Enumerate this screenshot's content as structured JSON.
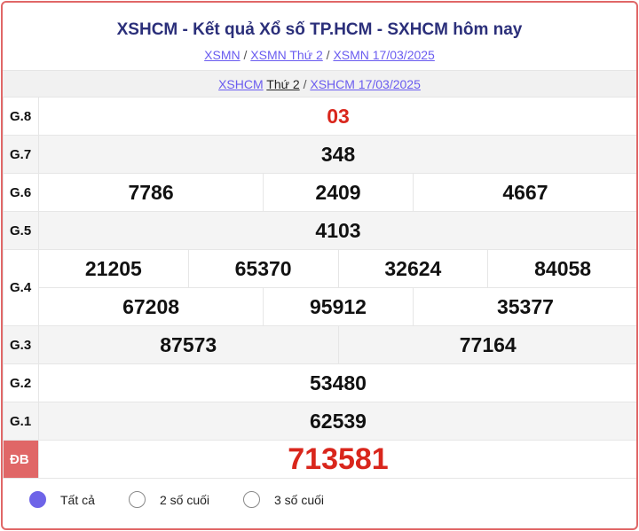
{
  "title": "XSHCM - Kết quả Xổ số TP.HCM - SXHCM hôm nay",
  "breadcrumb": [
    "XSMN",
    "XSMN Thứ 2",
    "XSMN 17/03/2025"
  ],
  "sub_breadcrumb": {
    "link1": "XSHCM",
    "link1_rest": "Thứ 2",
    "link2": "XSHCM 17/03/2025"
  },
  "prizes": {
    "g8": {
      "label": "G.8",
      "values": [
        "03"
      ]
    },
    "g7": {
      "label": "G.7",
      "values": [
        "348"
      ]
    },
    "g6": {
      "label": "G.6",
      "values": [
        "7786",
        "2409",
        "4667"
      ]
    },
    "g5": {
      "label": "G.5",
      "values": [
        "4103"
      ]
    },
    "g4": {
      "label": "G.4",
      "values": [
        "21205",
        "65370",
        "32624",
        "84058",
        "67208",
        "95912",
        "35377"
      ]
    },
    "g3": {
      "label": "G.3",
      "values": [
        "87573",
        "77164"
      ]
    },
    "g2": {
      "label": "G.2",
      "values": [
        "53480"
      ]
    },
    "g1": {
      "label": "G.1",
      "values": [
        "62539"
      ]
    },
    "db": {
      "label": "ĐB",
      "values": [
        "713581"
      ]
    }
  },
  "filter": {
    "options": [
      "Tất cả",
      "2 số cuối",
      "3 số cuối"
    ],
    "selected": "Tất cả"
  },
  "colors": {
    "accent": "#6e64e8",
    "red": "#d9261c",
    "border": "#e06767"
  }
}
